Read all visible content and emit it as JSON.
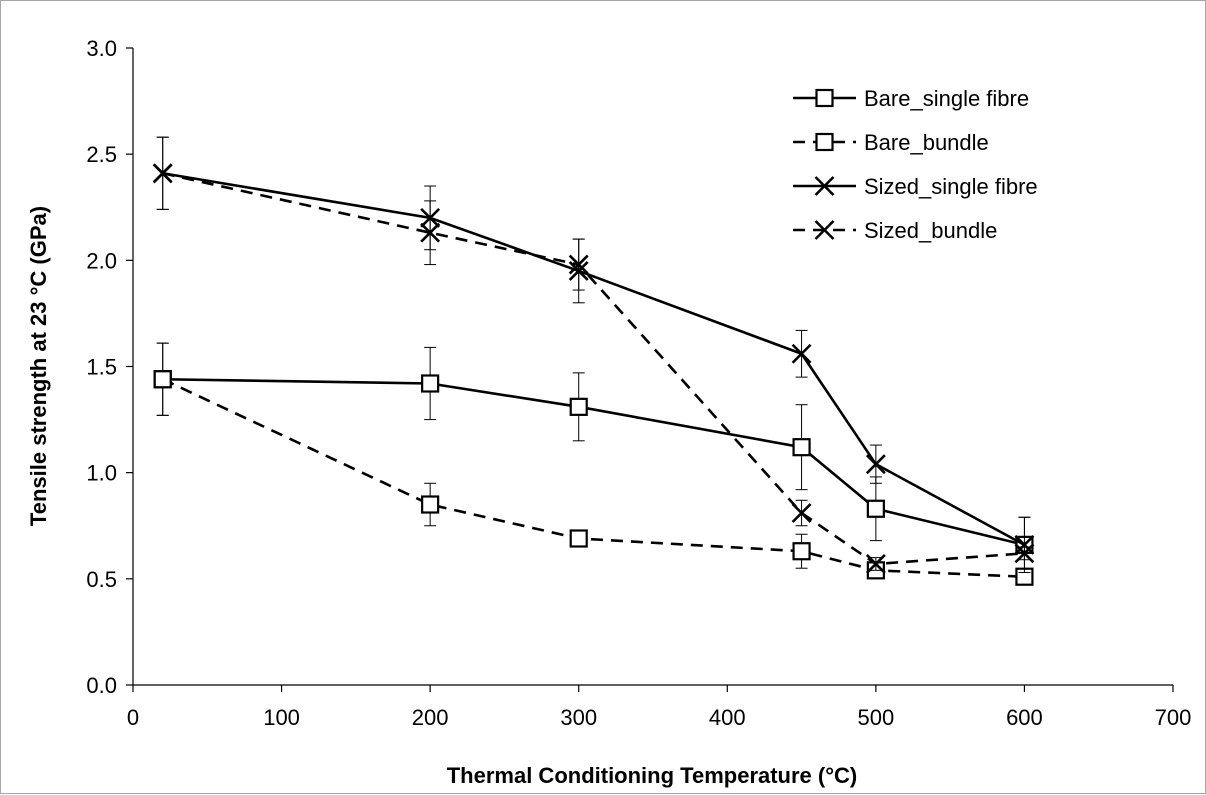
{
  "chart_data": {
    "type": "line",
    "xlabel": "Thermal Conditioning Temperature (°C)",
    "ylabel": "Tensile strength at 23 °C (GPa)",
    "xlim": [
      0,
      700
    ],
    "ylim": [
      0,
      3.0
    ],
    "xticks": [
      "0",
      "100",
      "200",
      "300",
      "400",
      "500",
      "600",
      "700"
    ],
    "yticks": [
      "0.0",
      "0.5",
      "1.0",
      "1.5",
      "2.0",
      "2.5",
      "3.0"
    ],
    "grid": false,
    "legend_position": "top-right",
    "series": [
      {
        "name": "Bare_single fibre",
        "line_style": "solid",
        "marker": "square",
        "x": [
          20,
          200,
          300,
          450,
          500,
          600
        ],
        "y": [
          1.44,
          1.42,
          1.31,
          1.12,
          0.83,
          0.66
        ],
        "err": [
          0.17,
          0.17,
          0.16,
          0.2,
          0.15,
          0.13
        ]
      },
      {
        "name": "Bare_bundle",
        "line_style": "dashed",
        "marker": "square",
        "x": [
          20,
          200,
          300,
          450,
          500,
          600
        ],
        "y": [
          1.44,
          0.85,
          0.69,
          0.63,
          0.54,
          0.51
        ],
        "err": [
          0.17,
          0.1,
          0.03,
          0.08,
          0.03,
          0.03
        ]
      },
      {
        "name": "Sized_single fibre",
        "line_style": "solid",
        "marker": "x",
        "x": [
          20,
          200,
          300,
          450,
          500,
          600
        ],
        "y": [
          2.41,
          2.2,
          1.95,
          1.56,
          1.04,
          0.66
        ],
        "err": [
          0.17,
          0.15,
          0.15,
          0.11,
          0.09,
          0.13
        ]
      },
      {
        "name": "Sized_bundle",
        "line_style": "dashed",
        "marker": "x",
        "x": [
          20,
          200,
          300,
          450,
          500,
          600
        ],
        "y": [
          2.41,
          2.13,
          1.98,
          0.81,
          0.57,
          0.62
        ],
        "err": [
          0.17,
          0.15,
          0.12,
          0.06,
          0.03,
          0.03
        ]
      }
    ]
  },
  "colors": {
    "line": "#000000",
    "frame": "#a6a6a6",
    "background": "#ffffff"
  }
}
